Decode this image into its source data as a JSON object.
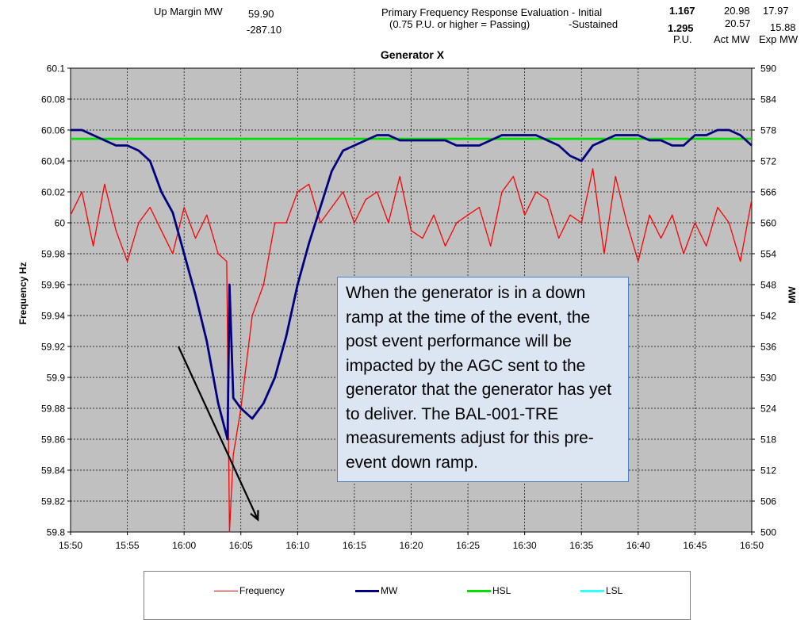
{
  "header": {
    "up_margin_label": "Up Margin MW",
    "up_margin_value_1": "59.90",
    "up_margin_value_2": "-287.10",
    "eval_title": "Primary Frequency Response Evaluation - Initial",
    "eval_subtitle": "(0.75 P.U. or higher = Passing)",
    "sustained_label": "-Sustained",
    "pu_initial": "1.167",
    "pu_sustained": "1.295",
    "pu_label": "P.U.",
    "act_mw_initial": "20.98",
    "act_mw_sustained": "20.57",
    "act_mw_label": "Act MW",
    "exp_mw_initial": "17.97",
    "exp_mw_sustained": "15.88",
    "exp_mw_label": "Exp MW"
  },
  "callout": {
    "text": "When the generator is in a down ramp at the time of the event, the post event performance will be impacted by the AGC sent to the generator that the generator has yet to deliver.  The BAL-001-TRE measurements adjust for this pre-event down ramp."
  },
  "colors": {
    "frequency": "#ff0000",
    "mw": "#000080",
    "hsl": "#00e000",
    "lsl": "#33ffff",
    "plot_bg": "#c0c0c0",
    "grid": "#000000"
  },
  "chart_data": {
    "type": "line",
    "title": "Generator X",
    "xlabel": "",
    "ylabel": "Frequency Hz",
    "y2label": "MW",
    "x_ticks": [
      "15:50",
      "15:55",
      "16:00",
      "16:05",
      "16:10",
      "16:15",
      "16:20",
      "16:25",
      "16:30",
      "16:35",
      "16:40",
      "16:45",
      "16:50"
    ],
    "ylim": [
      59.8,
      60.1
    ],
    "y_ticks": [
      "59.8",
      "59.82",
      "59.84",
      "59.86",
      "59.88",
      "59.9",
      "59.92",
      "59.94",
      "59.96",
      "59.98",
      "60",
      "60.02",
      "60.04",
      "60.06",
      "60.08",
      "60.1"
    ],
    "y2lim": [
      500,
      590
    ],
    "y2_ticks": [
      "500",
      "506",
      "512",
      "518",
      "524",
      "530",
      "536",
      "542",
      "548",
      "554",
      "560",
      "566",
      "572",
      "578",
      "584",
      "590"
    ],
    "grid": true,
    "legend_position": "bottom",
    "series": [
      {
        "name": "Frequency",
        "axis": "left",
        "points": [
          [
            "15:50",
            60.005
          ],
          [
            "15:51",
            60.02
          ],
          [
            "15:52",
            59.985
          ],
          [
            "15:53",
            60.025
          ],
          [
            "15:54",
            59.995
          ],
          [
            "15:55",
            59.975
          ],
          [
            "15:56",
            60.0
          ],
          [
            "15:57",
            60.01
          ],
          [
            "15:58",
            59.995
          ],
          [
            "15:59",
            59.98
          ],
          [
            "16:00",
            60.01
          ],
          [
            "16:01",
            59.99
          ],
          [
            "16:02",
            60.005
          ],
          [
            "16:03",
            59.98
          ],
          [
            "16:03:45",
            59.975
          ],
          [
            "16:04",
            59.8
          ],
          [
            "16:04:20",
            59.85
          ],
          [
            "16:05",
            59.88
          ],
          [
            "16:06",
            59.94
          ],
          [
            "16:07",
            59.96
          ],
          [
            "16:08",
            60.0
          ],
          [
            "16:09",
            60.0
          ],
          [
            "16:10",
            60.02
          ],
          [
            "16:11",
            60.025
          ],
          [
            "16:12",
            60.0
          ],
          [
            "16:13",
            60.01
          ],
          [
            "16:14",
            60.02
          ],
          [
            "16:15",
            60.0
          ],
          [
            "16:16",
            60.015
          ],
          [
            "16:17",
            60.02
          ],
          [
            "16:18",
            60.0
          ],
          [
            "16:19",
            60.03
          ],
          [
            "16:20",
            59.995
          ],
          [
            "16:21",
            59.99
          ],
          [
            "16:22",
            60.005
          ],
          [
            "16:23",
            59.985
          ],
          [
            "16:24",
            60.0
          ],
          [
            "16:25",
            60.005
          ],
          [
            "16:26",
            60.01
          ],
          [
            "16:27",
            59.985
          ],
          [
            "16:28",
            60.02
          ],
          [
            "16:29",
            60.03
          ],
          [
            "16:30",
            60.005
          ],
          [
            "16:31",
            60.02
          ],
          [
            "16:32",
            60.015
          ],
          [
            "16:33",
            59.99
          ],
          [
            "16:34",
            60.005
          ],
          [
            "16:35",
            60.0
          ],
          [
            "16:36",
            60.035
          ],
          [
            "16:37",
            59.98
          ],
          [
            "16:38",
            60.03
          ],
          [
            "16:39",
            60.0
          ],
          [
            "16:40",
            59.975
          ],
          [
            "16:41",
            60.005
          ],
          [
            "16:42",
            59.99
          ],
          [
            "16:43",
            60.005
          ],
          [
            "16:44",
            59.98
          ],
          [
            "16:45",
            60.0
          ],
          [
            "16:46",
            59.985
          ],
          [
            "16:47",
            60.01
          ],
          [
            "16:48",
            60.0
          ],
          [
            "16:49",
            59.975
          ],
          [
            "16:50",
            60.015
          ]
        ]
      },
      {
        "name": "MW",
        "axis": "right",
        "points": [
          [
            "15:50",
            578
          ],
          [
            "15:51",
            578
          ],
          [
            "15:52",
            577
          ],
          [
            "15:53",
            576
          ],
          [
            "15:54",
            575
          ],
          [
            "15:55",
            575
          ],
          [
            "15:56",
            574
          ],
          [
            "15:57",
            572
          ],
          [
            "15:58",
            566
          ],
          [
            "15:59",
            562
          ],
          [
            "16:00",
            554
          ],
          [
            "16:01",
            546
          ],
          [
            "16:02",
            537
          ],
          [
            "16:03",
            525
          ],
          [
            "16:03:50",
            518
          ],
          [
            "16:04",
            548
          ],
          [
            "16:04:20",
            526
          ],
          [
            "16:05",
            524
          ],
          [
            "16:06",
            522
          ],
          [
            "16:07",
            525
          ],
          [
            "16:08",
            530
          ],
          [
            "16:09",
            538
          ],
          [
            "16:10",
            548
          ],
          [
            "16:11",
            556
          ],
          [
            "16:12",
            563
          ],
          [
            "16:13",
            570
          ],
          [
            "16:14",
            574
          ],
          [
            "16:15",
            575
          ],
          [
            "16:16",
            576
          ],
          [
            "16:17",
            577
          ],
          [
            "16:18",
            577
          ],
          [
            "16:19",
            576
          ],
          [
            "16:20",
            576
          ],
          [
            "16:21",
            576
          ],
          [
            "16:22",
            576
          ],
          [
            "16:23",
            576
          ],
          [
            "16:24",
            575
          ],
          [
            "16:25",
            575
          ],
          [
            "16:26",
            575
          ],
          [
            "16:27",
            576
          ],
          [
            "16:28",
            577
          ],
          [
            "16:29",
            577
          ],
          [
            "16:30",
            577
          ],
          [
            "16:31",
            577
          ],
          [
            "16:32",
            576
          ],
          [
            "16:33",
            575
          ],
          [
            "16:34",
            573
          ],
          [
            "16:35",
            572
          ],
          [
            "16:36",
            575
          ],
          [
            "16:37",
            576
          ],
          [
            "16:38",
            577
          ],
          [
            "16:39",
            577
          ],
          [
            "16:40",
            577
          ],
          [
            "16:41",
            576
          ],
          [
            "16:42",
            576
          ],
          [
            "16:43",
            575
          ],
          [
            "16:44",
            575
          ],
          [
            "16:45",
            577
          ],
          [
            "16:46",
            577
          ],
          [
            "16:47",
            578
          ],
          [
            "16:48",
            578
          ],
          [
            "16:49",
            577
          ],
          [
            "16:50",
            575
          ]
        ]
      },
      {
        "name": "HSL",
        "axis": "right",
        "points": [
          [
            "15:50",
            576.3
          ],
          [
            "16:50",
            576.3
          ]
        ]
      },
      {
        "name": "LSL",
        "axis": "right",
        "points": []
      }
    ],
    "annotations": [
      {
        "type": "arrow",
        "from": [
          "15:59:30",
          59.92
        ],
        "to": [
          "16:06:30",
          59.808
        ]
      }
    ]
  }
}
